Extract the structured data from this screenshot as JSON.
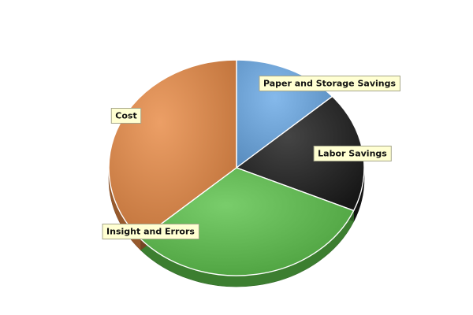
{
  "chart_data": {
    "type": "pie",
    "title": "",
    "slices": [
      {
        "label": "Paper and Storage Savings",
        "value": 13.5,
        "color": "#6aaae6"
      },
      {
        "label": "Labor Savings",
        "value": 18.0,
        "color": "#1c1c1c"
      },
      {
        "label": "Insight and Errors",
        "value": 32.0,
        "color": "#5cc24a"
      },
      {
        "label": "Cost",
        "value": 36.5,
        "color": "#e88a45"
      }
    ],
    "legend": "none",
    "style": "3d"
  }
}
